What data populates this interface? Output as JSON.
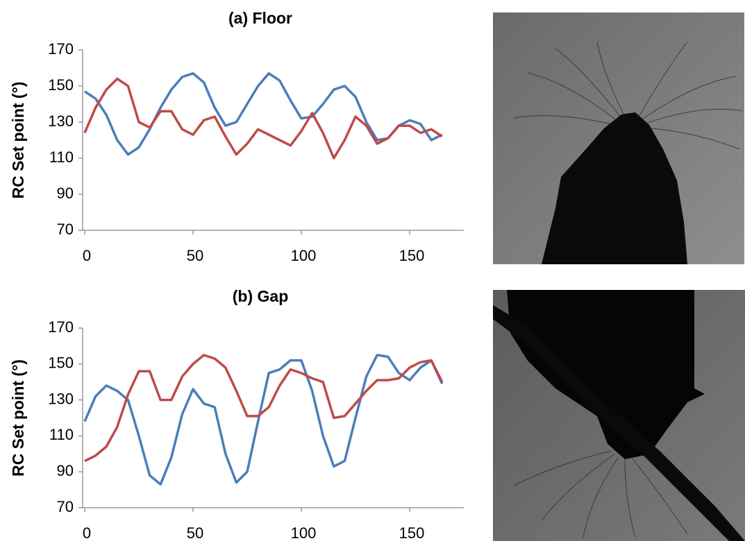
{
  "chart_data": [
    {
      "type": "line",
      "title": "(a) Floor",
      "y_label": "RC Set point (°)",
      "x": [
        0,
        5,
        10,
        15,
        20,
        25,
        30,
        35,
        40,
        45,
        50,
        55,
        60,
        65,
        70,
        75,
        80,
        85,
        90,
        95,
        100,
        105,
        110,
        115,
        120,
        125,
        130,
        135,
        140,
        145,
        150,
        155,
        160,
        165
      ],
      "series": [
        {
          "color": "#4a7ebb",
          "values": [
            147,
            143,
            134,
            120,
            112,
            116,
            126,
            138,
            148,
            155,
            157,
            152,
            138,
            128,
            130,
            140,
            150,
            157,
            153,
            142,
            132,
            133,
            140,
            148,
            150,
            144,
            130,
            120,
            121,
            128,
            131,
            129,
            120,
            123
          ]
        },
        {
          "color": "#be4b48",
          "values": [
            124,
            138,
            148,
            154,
            150,
            130,
            127,
            136,
            136,
            126,
            123,
            131,
            133,
            122,
            112,
            118,
            126,
            123,
            120,
            117,
            125,
            135,
            124,
            110,
            120,
            133,
            128,
            118,
            121,
            128,
            128,
            124,
            126,
            122
          ]
        }
      ],
      "xlim": [
        0,
        175
      ],
      "xticks": [
        0,
        50,
        100,
        150
      ],
      "ylim": [
        70,
        170
      ],
      "yticks": [
        70,
        90,
        110,
        130,
        150,
        170
      ]
    },
    {
      "type": "line",
      "title": "(b) Gap",
      "y_label": "RC Set point (°)",
      "x": [
        0,
        5,
        10,
        15,
        20,
        25,
        30,
        35,
        40,
        45,
        50,
        55,
        60,
        65,
        70,
        75,
        80,
        85,
        90,
        95,
        100,
        105,
        110,
        115,
        120,
        125,
        130,
        135,
        140,
        145,
        150,
        155,
        160,
        165
      ],
      "series": [
        {
          "color": "#4a7ebb",
          "values": [
            118,
            132,
            138,
            135,
            130,
            110,
            88,
            83,
            98,
            122,
            136,
            128,
            126,
            100,
            84,
            90,
            118,
            145,
            147,
            152,
            152,
            135,
            110,
            93,
            96,
            120,
            143,
            155,
            154,
            145,
            141,
            148,
            152,
            139
          ]
        },
        {
          "color": "#be4b48",
          "values": [
            96,
            99,
            104,
            115,
            133,
            146,
            146,
            130,
            130,
            143,
            150,
            155,
            153,
            148,
            135,
            121,
            121,
            126,
            138,
            147,
            145,
            142,
            140,
            120,
            121,
            128,
            135,
            141,
            141,
            142,
            148,
            151,
            152,
            140
          ]
        }
      ],
      "xlim": [
        0,
        175
      ],
      "xticks": [
        0,
        50,
        100,
        150
      ],
      "ylim": [
        70,
        170
      ],
      "yticks": [
        70,
        90,
        110,
        130,
        150,
        170
      ]
    }
  ]
}
